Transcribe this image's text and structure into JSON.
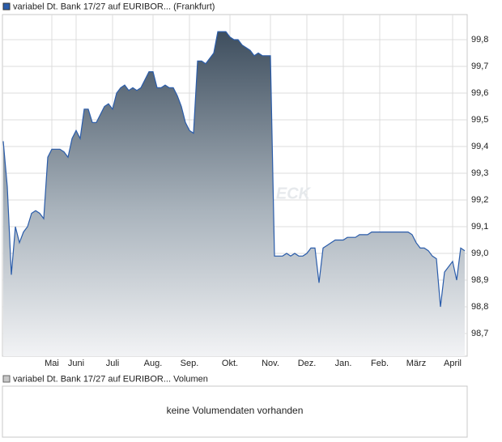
{
  "chart_data": {
    "type": "area",
    "series": [
      {
        "name": "variabel Dt. Bank 17/27 auf EURIBOR... (Frankfurt)",
        "color": "#2a5caa",
        "values": [
          99.42,
          99.25,
          98.92,
          99.1,
          99.04,
          99.08,
          99.1,
          99.15,
          99.16,
          99.15,
          99.13,
          99.36,
          99.39,
          99.39,
          99.39,
          99.38,
          99.36,
          99.43,
          99.46,
          99.43,
          99.54,
          99.54,
          99.49,
          99.49,
          99.52,
          99.55,
          99.56,
          99.54,
          99.6,
          99.62,
          99.63,
          99.61,
          99.62,
          99.61,
          99.62,
          99.65,
          99.68,
          99.68,
          99.62,
          99.62,
          99.63,
          99.62,
          99.62,
          99.59,
          99.55,
          99.49,
          99.46,
          99.45,
          99.72,
          99.72,
          99.71,
          99.73,
          99.75,
          99.83,
          99.83,
          99.83,
          99.81,
          99.8,
          99.8,
          99.78,
          99.77,
          99.76,
          99.74,
          99.75,
          99.74,
          99.74,
          99.74,
          98.99,
          98.99,
          98.99,
          99.0,
          98.99,
          99.0,
          98.99,
          98.99,
          99.0,
          99.02,
          99.02,
          98.89,
          99.02,
          99.03,
          99.04,
          99.05,
          99.05,
          99.05,
          99.06,
          99.06,
          99.06,
          99.07,
          99.07,
          99.07,
          99.08,
          99.08,
          99.08,
          99.08,
          99.08,
          99.08,
          99.08,
          99.08,
          99.08,
          99.08,
          99.07,
          99.04,
          99.02,
          99.02,
          99.01,
          98.99,
          98.98,
          98.8,
          98.93,
          98.95,
          98.97,
          98.9,
          99.02,
          99.01
        ]
      }
    ],
    "categories": [
      null,
      null,
      null,
      null,
      null,
      null,
      null,
      null,
      null,
      null,
      null,
      null,
      "Mai",
      null,
      null,
      null,
      null,
      null,
      "Juni",
      null,
      null,
      null,
      null,
      null,
      null,
      null,
      null,
      "Juli",
      null,
      null,
      null,
      null,
      null,
      null,
      null,
      null,
      null,
      "Aug.",
      null,
      null,
      null,
      null,
      null,
      null,
      null,
      null,
      "Sep.",
      null,
      null,
      null,
      null,
      null,
      null,
      null,
      null,
      null,
      "Okt.",
      null,
      null,
      null,
      null,
      null,
      null,
      null,
      null,
      null,
      "Nov.",
      null,
      null,
      null,
      null,
      null,
      null,
      null,
      null,
      "Dez.",
      null,
      null,
      null,
      null,
      null,
      null,
      null,
      null,
      "Jan.",
      null,
      null,
      null,
      null,
      null,
      null,
      null,
      null,
      "Feb.",
      null,
      null,
      null,
      null,
      null,
      null,
      null,
      null,
      "März",
      null,
      null,
      null,
      null,
      null,
      null,
      null,
      null,
      "April",
      null,
      null,
      null
    ],
    "ylim": [
      98.615,
      99.894
    ],
    "yticks": [
      {
        "value": 98.7,
        "label": "98,7"
      },
      {
        "value": 98.8,
        "label": "98,8"
      },
      {
        "value": 98.9,
        "label": "98,9"
      },
      {
        "value": 99.0,
        "label": "99,0"
      },
      {
        "value": 99.1,
        "label": "99,1"
      },
      {
        "value": 99.2,
        "label": "99,2"
      },
      {
        "value": 99.3,
        "label": "99,3"
      },
      {
        "value": 99.4,
        "label": "99,4"
      },
      {
        "value": 99.5,
        "label": "99,5"
      },
      {
        "value": 99.6,
        "label": "99,6"
      },
      {
        "value": 99.7,
        "label": "99,7"
      },
      {
        "value": 99.8,
        "label": "99,8"
      }
    ],
    "grid": true,
    "watermark": "ECK"
  },
  "volume_panel": {
    "legend": "variabel Dt. Bank 17/27 auf EURIBOR... Volumen",
    "color": "#c8c8c8",
    "message": "keine Volumendaten vorhanden"
  }
}
